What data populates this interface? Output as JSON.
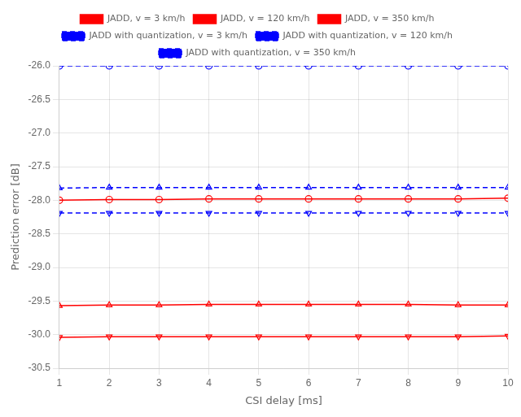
{
  "chart_data": {
    "type": "line",
    "x": [
      1,
      2,
      3,
      4,
      5,
      6,
      7,
      8,
      9,
      10
    ],
    "series": [
      {
        "name": "JADD, v = 3 km/h",
        "color": "#FF0000",
        "line_style": "solid",
        "marker": "circle",
        "values": [
          -28.0,
          -27.99,
          -27.99,
          -27.98,
          -27.98,
          -27.98,
          -27.98,
          -27.98,
          -27.98,
          -27.97
        ]
      },
      {
        "name": "JADD, v = 120 km/h",
        "color": "#FF0000",
        "line_style": "solid",
        "marker": "triangle-up",
        "values": [
          -29.57,
          -29.56,
          -29.56,
          -29.55,
          -29.55,
          -29.55,
          -29.55,
          -29.55,
          -29.56,
          -29.56
        ]
      },
      {
        "name": "JADD, v = 350 km/h",
        "color": "#FF0000",
        "line_style": "solid",
        "marker": "triangle-down",
        "values": [
          -30.04,
          -30.03,
          -30.03,
          -30.03,
          -30.03,
          -30.03,
          -30.03,
          -30.03,
          -30.03,
          -30.02
        ]
      },
      {
        "name": "JADD with quantization, v = 3 km/h",
        "color": "#0000FF",
        "line_style": "dashed",
        "marker": "circle",
        "values": [
          -26.0,
          -26.0,
          -26.0,
          -26.0,
          -26.0,
          -26.0,
          -26.0,
          -26.0,
          -26.0,
          -26.0
        ]
      },
      {
        "name": "JADD with quantization, v = 120 km/h",
        "color": "#0000FF",
        "line_style": "dashed",
        "marker": "triangle-up",
        "values": [
          -27.82,
          -27.81,
          -27.81,
          -27.81,
          -27.81,
          -27.81,
          -27.81,
          -27.81,
          -27.81,
          -27.81
        ]
      },
      {
        "name": "JADD with quantization, v = 350 km/h",
        "color": "#0000FF",
        "line_style": "dashed",
        "marker": "triangle-down",
        "values": [
          -28.19,
          -28.19,
          -28.19,
          -28.19,
          -28.19,
          -28.19,
          -28.19,
          -28.19,
          -28.19,
          -28.19
        ]
      }
    ],
    "xlabel": "CSI delay [ms]",
    "ylabel": "Prediction error [dB]",
    "xlim": [
      1,
      10
    ],
    "ylim": [
      -30.5,
      -26.0
    ],
    "xticks": [
      1,
      2,
      3,
      4,
      5,
      6,
      7,
      8,
      9,
      10
    ],
    "yticks": [
      -30.5,
      {
        "value": -30.0,
        "label": "-30.0"
      },
      -29.5,
      {
        "value": -29.0,
        "label": "-29.0"
      },
      -28.5,
      {
        "value": -28.0,
        "label": "-28.0"
      },
      -27.5,
      {
        "value": -27.0,
        "label": "-27.0"
      },
      -26.5,
      {
        "value": -26.0,
        "label": "-26.0"
      }
    ],
    "grid": true,
    "legend": "top"
  }
}
